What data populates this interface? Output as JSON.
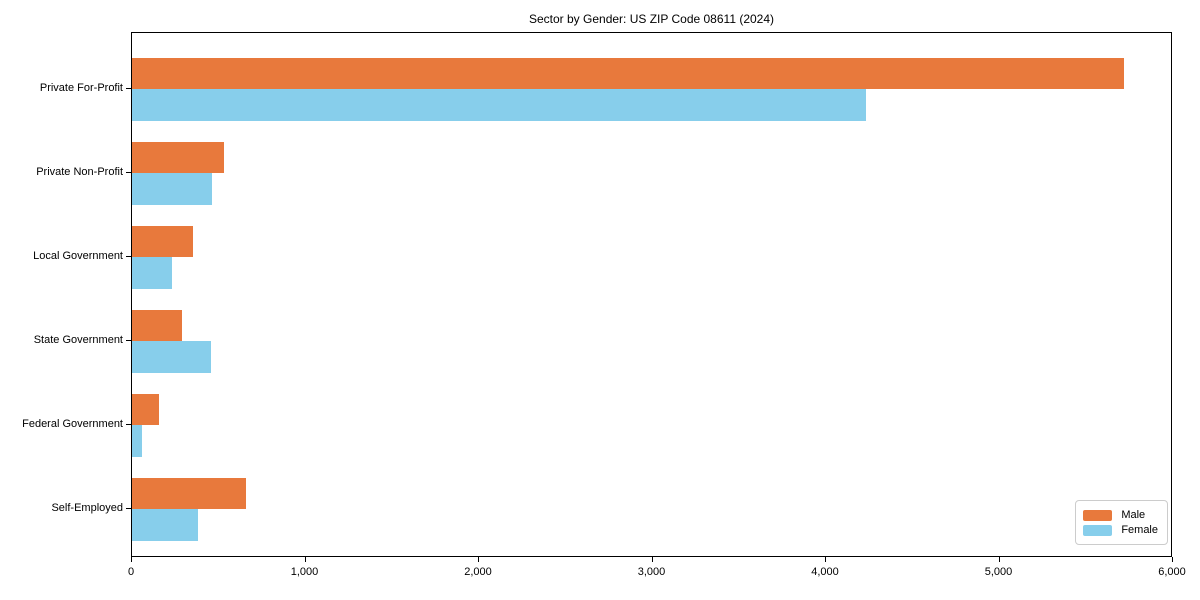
{
  "chart_data": {
    "type": "bar",
    "orientation": "horizontal",
    "title": "Sector by Gender: US ZIP Code 08611 (2024)",
    "categories": [
      "Private For-Profit",
      "Private Non-Profit",
      "Local Government",
      "State Government",
      "Federal Government",
      "Self-Employed"
    ],
    "series": [
      {
        "name": "Male",
        "color": "#E8793C",
        "values": [
          5730,
          530,
          350,
          290,
          155,
          660
        ]
      },
      {
        "name": "Female",
        "color": "#87CEEB",
        "values": [
          4240,
          460,
          230,
          455,
          55,
          380
        ]
      }
    ],
    "xlabel": "",
    "ylabel": "",
    "xlim": [
      0,
      6000
    ],
    "x_ticks": [
      0,
      1000,
      2000,
      3000,
      4000,
      5000,
      6000
    ],
    "x_tick_labels": [
      "0",
      "1,000",
      "2,000",
      "3,000",
      "4,000",
      "5,000",
      "6,000"
    ],
    "grid": false,
    "legend": {
      "position": "lower right",
      "entries": [
        "Male",
        "Female"
      ]
    },
    "colors": {
      "background": "#ffffff",
      "axis": "#000000",
      "legend_border": "#cccccc"
    }
  }
}
